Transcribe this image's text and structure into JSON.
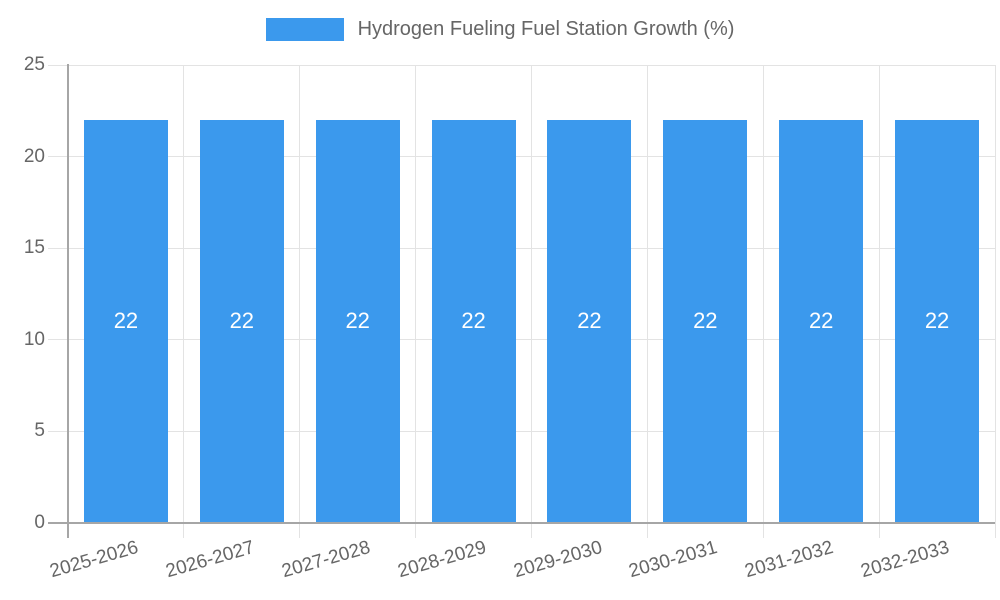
{
  "chart_data": {
    "type": "bar",
    "title": "Hydrogen Fueling Fuel Station Growth (%)",
    "legend": {
      "label": "Hydrogen Fueling Fuel Station Growth (%)",
      "position": "top"
    },
    "categories": [
      "2025-2026",
      "2026-2027",
      "2027-2028",
      "2028-2029",
      "2029-2030",
      "2030-2031",
      "2031-2032",
      "2032-2033"
    ],
    "values": [
      22,
      22,
      22,
      22,
      22,
      22,
      22,
      22
    ],
    "bar_value_labels": [
      "22",
      "22",
      "22",
      "22",
      "22",
      "22",
      "22",
      "22"
    ],
    "xlabel": "",
    "ylabel": "",
    "ylim": [
      0,
      25
    ],
    "yticks": [
      0,
      5,
      10,
      15,
      20,
      25
    ],
    "grid": true,
    "colors": {
      "bar": "#3B99ED",
      "bar_label": "#FFFFFF",
      "gridline": "#E3E3E3",
      "axis": "#A6A6A6",
      "tick_text": "#666666",
      "background": "#FFFFFF"
    }
  }
}
